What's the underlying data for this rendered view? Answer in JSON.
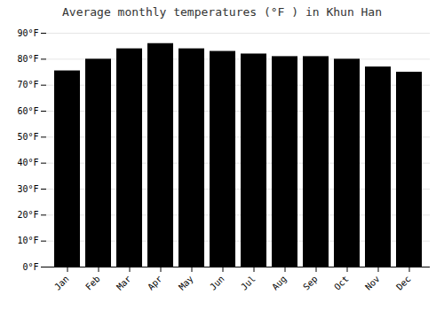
{
  "chart_data": {
    "type": "bar",
    "title": "Average monthly temperatures (°F ) in Khun Han",
    "categories": [
      "Jan",
      "Feb",
      "Mar",
      "Apr",
      "May",
      "Jun",
      "Jul",
      "Aug",
      "Sep",
      "Oct",
      "Nov",
      "Dec"
    ],
    "values": [
      75.5,
      80.0,
      84.0,
      86.0,
      84.0,
      83.0,
      82.0,
      81.0,
      81.0,
      80.0,
      77.0,
      75.0
    ],
    "ylim": [
      0,
      90
    ],
    "yticks": [
      {
        "value": 0,
        "label": "0°F"
      },
      {
        "value": 10,
        "label": "10°F"
      },
      {
        "value": 20,
        "label": "20°F"
      },
      {
        "value": 30,
        "label": "30°F"
      },
      {
        "value": 40,
        "label": "40°F"
      },
      {
        "value": 50,
        "label": "50°F"
      },
      {
        "value": 60,
        "label": "60°F"
      },
      {
        "value": 70,
        "label": "70°F"
      },
      {
        "value": 80,
        "label": "80°F"
      },
      {
        "value": 90,
        "label": "90°F"
      }
    ],
    "grid": true
  }
}
